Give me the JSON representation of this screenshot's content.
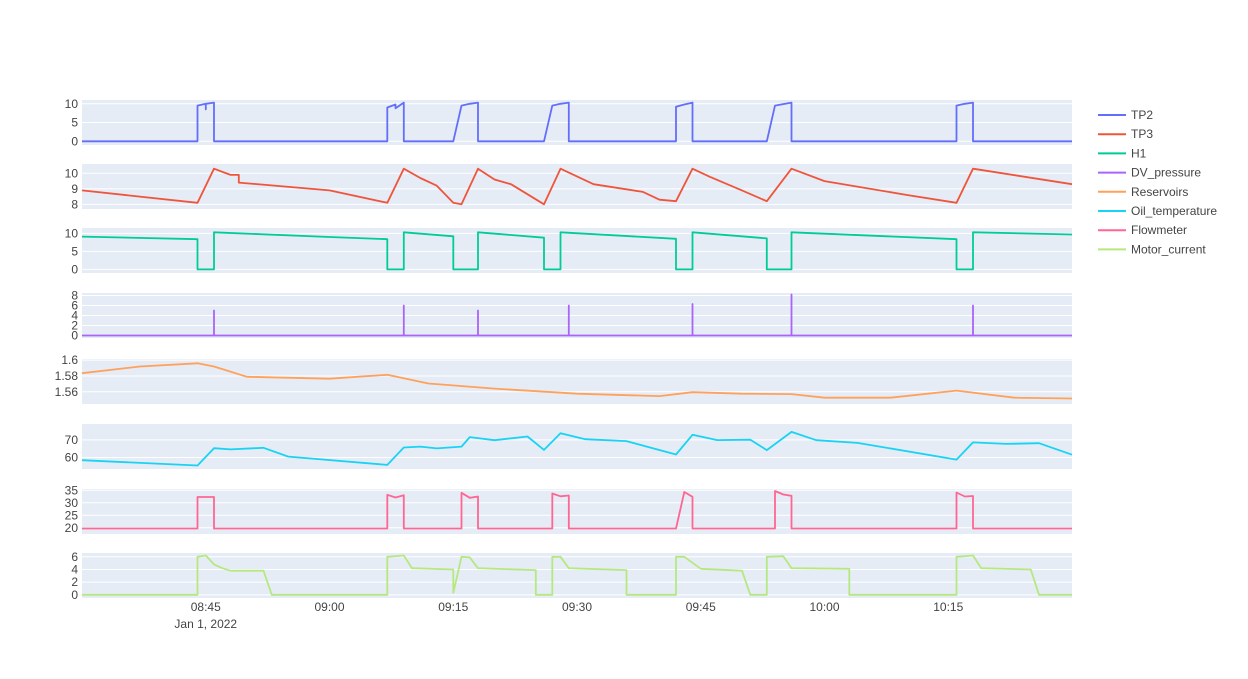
{
  "chart_data": {
    "type": "line",
    "title": "",
    "layout": "stacked-subplots",
    "legend_position": "right",
    "plot_background": "#e5ecf6",
    "x": {
      "type": "date",
      "range": [
        "2022-01-01 08:30",
        "2022-01-01 10:30"
      ],
      "tick_labels": [
        "08:45",
        "09:00",
        "09:15",
        "09:30",
        "09:45",
        "10:00",
        "10:15"
      ],
      "tick_values": [
        "08:45",
        "09:00",
        "09:15",
        "09:30",
        "09:45",
        "10:00",
        "10:15"
      ],
      "secondary_label": "Jan 1, 2022"
    },
    "series": [
      {
        "name": "TP2",
        "color": "#636efa",
        "ylim": [
          -1,
          11
        ],
        "yticks": [
          0,
          5,
          10
        ],
        "ytick_labels": [
          "0",
          "5",
          "10"
        ],
        "points": [
          [
            "08:30",
            0
          ],
          [
            "08:44",
            0
          ],
          [
            "08:44",
            9.5
          ],
          [
            "08:45",
            10
          ],
          [
            "08:45",
            8.5
          ],
          [
            "08:45",
            10
          ],
          [
            "08:46",
            10.3
          ],
          [
            "08:46",
            0
          ],
          [
            "09:07",
            0
          ],
          [
            "09:07",
            9
          ],
          [
            "09:08",
            9.8
          ],
          [
            "09:08",
            8.8
          ],
          [
            "09:09",
            10.3
          ],
          [
            "09:09",
            0
          ],
          [
            "09:15",
            0
          ],
          [
            "09:16",
            9.5
          ],
          [
            "09:17",
            10
          ],
          [
            "09:18",
            10.3
          ],
          [
            "09:18",
            0
          ],
          [
            "09:26",
            0
          ],
          [
            "09:27",
            9.5
          ],
          [
            "09:28",
            10
          ],
          [
            "09:29",
            10.3
          ],
          [
            "09:29",
            0
          ],
          [
            "09:42",
            0
          ],
          [
            "09:42",
            9.2
          ],
          [
            "09:43",
            9.8
          ],
          [
            "09:44",
            10.3
          ],
          [
            "09:44",
            0
          ],
          [
            "09:53",
            0
          ],
          [
            "09:54",
            9.5
          ],
          [
            "09:56",
            10.3
          ],
          [
            "09:56",
            0
          ],
          [
            "10:16",
            0
          ],
          [
            "10:16",
            9.5
          ],
          [
            "10:17",
            10
          ],
          [
            "10:18",
            10.3
          ],
          [
            "10:18",
            0
          ],
          [
            "10:30",
            0
          ]
        ]
      },
      {
        "name": "TP3",
        "color": "#ef553b",
        "ylim": [
          7.7,
          10.6
        ],
        "yticks": [
          8,
          9,
          10
        ],
        "ytick_labels": [
          "8",
          "9",
          "10"
        ],
        "points": [
          [
            "08:30",
            8.9
          ],
          [
            "08:44",
            8.1
          ],
          [
            "08:46",
            10.3
          ],
          [
            "08:48",
            9.9
          ],
          [
            "08:49",
            9.9
          ],
          [
            "08:49",
            9.4
          ],
          [
            "09:00",
            8.9
          ],
          [
            "09:07",
            8.1
          ],
          [
            "09:09",
            10.3
          ],
          [
            "09:11",
            9.7
          ],
          [
            "09:13",
            9.2
          ],
          [
            "09:15",
            8.1
          ],
          [
            "09:16",
            8.0
          ],
          [
            "09:18",
            10.3
          ],
          [
            "09:20",
            9.6
          ],
          [
            "09:22",
            9.3
          ],
          [
            "09:26",
            8.0
          ],
          [
            "09:28",
            10.3
          ],
          [
            "09:32",
            9.3
          ],
          [
            "09:38",
            8.8
          ],
          [
            "09:40",
            8.3
          ],
          [
            "09:42",
            8.2
          ],
          [
            "09:44",
            10.3
          ],
          [
            "09:46",
            9.8
          ],
          [
            "09:50",
            8.9
          ],
          [
            "09:53",
            8.2
          ],
          [
            "09:56",
            10.3
          ],
          [
            "10:00",
            9.5
          ],
          [
            "10:10",
            8.6
          ],
          [
            "10:16",
            8.1
          ],
          [
            "10:18",
            10.3
          ],
          [
            "10:30",
            9.3
          ]
        ]
      },
      {
        "name": "H1",
        "color": "#00cc96",
        "ylim": [
          -1,
          11.5
        ],
        "yticks": [
          0,
          5,
          10
        ],
        "ytick_labels": [
          "0",
          "5",
          "10"
        ],
        "points": [
          [
            "08:30",
            9.1
          ],
          [
            "08:44",
            8.4
          ],
          [
            "08:44",
            0
          ],
          [
            "08:46",
            0
          ],
          [
            "08:46",
            10.3
          ],
          [
            "09:00",
            9.0
          ],
          [
            "09:07",
            8.4
          ],
          [
            "09:07",
            0
          ],
          [
            "09:09",
            0
          ],
          [
            "09:09",
            10.3
          ],
          [
            "09:15",
            9.2
          ],
          [
            "09:15",
            0
          ],
          [
            "09:18",
            0
          ],
          [
            "09:18",
            10.3
          ],
          [
            "09:26",
            8.8
          ],
          [
            "09:26",
            0
          ],
          [
            "09:28",
            0
          ],
          [
            "09:28",
            10.3
          ],
          [
            "09:42",
            8.5
          ],
          [
            "09:42",
            0
          ],
          [
            "09:44",
            0
          ],
          [
            "09:44",
            10.3
          ],
          [
            "09:53",
            8.6
          ],
          [
            "09:53",
            0
          ],
          [
            "09:56",
            0
          ],
          [
            "09:56",
            10.3
          ],
          [
            "10:16",
            8.4
          ],
          [
            "10:16",
            0
          ],
          [
            "10:18",
            0
          ],
          [
            "10:18",
            10.3
          ],
          [
            "10:30",
            9.7
          ]
        ]
      },
      {
        "name": "DV_pressure",
        "color": "#ab63fa",
        "ylim": [
          -0.5,
          8.5
        ],
        "yticks": [
          0,
          2,
          4,
          6,
          8
        ],
        "ytick_labels": [
          "0",
          "2",
          "4",
          "6",
          "8"
        ],
        "points": [
          [
            "08:30",
            0
          ],
          [
            "08:46",
            0
          ],
          [
            "08:46",
            5
          ],
          [
            "08:46",
            0
          ],
          [
            "09:09",
            0
          ],
          [
            "09:09",
            6
          ],
          [
            "09:09",
            0
          ],
          [
            "09:18",
            0
          ],
          [
            "09:18",
            5
          ],
          [
            "09:18",
            0
          ],
          [
            "09:29",
            0
          ],
          [
            "09:29",
            6
          ],
          [
            "09:29",
            0
          ],
          [
            "09:44",
            0
          ],
          [
            "09:44",
            6.3
          ],
          [
            "09:44",
            0
          ],
          [
            "09:56",
            0
          ],
          [
            "09:56",
            8.2
          ],
          [
            "09:56",
            0
          ],
          [
            "10:18",
            0
          ],
          [
            "10:18",
            6
          ],
          [
            "10:18",
            0
          ],
          [
            "10:30",
            0
          ]
        ]
      },
      {
        "name": "Reservoirs",
        "color": "#ffa15a",
        "ylim": [
          1.5445,
          1.6015
        ],
        "yticks": [
          1.56,
          1.58,
          1.6
        ],
        "ytick_labels": [
          "1.56",
          "1.58",
          "1.6"
        ],
        "points": [
          [
            "08:30",
            1.5835
          ],
          [
            "08:37",
            1.592
          ],
          [
            "08:44",
            1.596
          ],
          [
            "08:46",
            1.592
          ],
          [
            "08:50",
            1.579
          ],
          [
            "09:00",
            1.5765
          ],
          [
            "09:07",
            1.5815
          ],
          [
            "09:12",
            1.5705
          ],
          [
            "09:20",
            1.564
          ],
          [
            "09:30",
            1.5575
          ],
          [
            "09:40",
            1.5545
          ],
          [
            "09:44",
            1.5595
          ],
          [
            "09:50",
            1.5575
          ],
          [
            "09:56",
            1.557
          ],
          [
            "10:00",
            1.5525
          ],
          [
            "10:08",
            1.5525
          ],
          [
            "10:16",
            1.5615
          ],
          [
            "10:23",
            1.5525
          ],
          [
            "10:30",
            1.5515
          ]
        ]
      },
      {
        "name": "Oil_temperature",
        "color": "#19d3f3",
        "ylim": [
          53.5,
          79
        ],
        "yticks": [
          60,
          70
        ],
        "ytick_labels": [
          "60",
          "70"
        ],
        "points": [
          [
            "08:30",
            58.5
          ],
          [
            "08:44",
            55.5
          ],
          [
            "08:46",
            65.3
          ],
          [
            "08:48",
            64.6
          ],
          [
            "08:52",
            65.5
          ],
          [
            "08:55",
            60.5
          ],
          [
            "09:07",
            55.8
          ],
          [
            "09:09",
            65.7
          ],
          [
            "09:11",
            66.2
          ],
          [
            "09:13",
            65.2
          ],
          [
            "09:16",
            66.2
          ],
          [
            "09:17",
            71.6
          ],
          [
            "09:20",
            69.8
          ],
          [
            "09:24",
            71.9
          ],
          [
            "09:26",
            64.3
          ],
          [
            "09:28",
            73.8
          ],
          [
            "09:31",
            70.4
          ],
          [
            "09:36",
            69.3
          ],
          [
            "09:42",
            61.7
          ],
          [
            "09:44",
            72.9
          ],
          [
            "09:47",
            69.9
          ],
          [
            "09:51",
            70.1
          ],
          [
            "09:53",
            64.2
          ],
          [
            "09:56",
            74.5
          ],
          [
            "09:59",
            69.8
          ],
          [
            "10:04",
            68.3
          ],
          [
            "10:16",
            58.8
          ],
          [
            "10:18",
            68.6
          ],
          [
            "10:22",
            67.7
          ],
          [
            "10:26",
            68.1
          ],
          [
            "10:30",
            61.6
          ]
        ]
      },
      {
        "name": "Flowmeter",
        "color": "#ff6692",
        "ylim": [
          17.5,
          35.5
        ],
        "yticks": [
          20,
          25,
          30,
          35
        ],
        "ytick_labels": [
          "20",
          "25",
          "30",
          "35"
        ],
        "points": [
          [
            "08:30",
            19.7
          ],
          [
            "08:44",
            19.7
          ],
          [
            "08:44",
            32.3
          ],
          [
            "08:46",
            32.3
          ],
          [
            "08:46",
            19.7
          ],
          [
            "09:07",
            19.7
          ],
          [
            "09:07",
            33.2
          ],
          [
            "09:08",
            32.1
          ],
          [
            "09:09",
            33
          ],
          [
            "09:09",
            19.7
          ],
          [
            "09:16",
            19.7
          ],
          [
            "09:16",
            34
          ],
          [
            "09:17",
            32
          ],
          [
            "09:18",
            32.5
          ],
          [
            "09:18",
            19.7
          ],
          [
            "09:27",
            19.7
          ],
          [
            "09:27",
            33.7
          ],
          [
            "09:28",
            32.6
          ],
          [
            "09:29",
            32.9
          ],
          [
            "09:29",
            19.7
          ],
          [
            "09:42",
            19.7
          ],
          [
            "09:43",
            34.3
          ],
          [
            "09:44",
            32.4
          ],
          [
            "09:44",
            19.7
          ],
          [
            "09:54",
            19.7
          ],
          [
            "09:54",
            34.7
          ],
          [
            "09:55",
            33.3
          ],
          [
            "09:56",
            32.8
          ],
          [
            "09:56",
            19.7
          ],
          [
            "10:16",
            19.7
          ],
          [
            "10:16",
            34.1
          ],
          [
            "10:17",
            32.5
          ],
          [
            "10:18",
            32.7
          ],
          [
            "10:18",
            19.7
          ],
          [
            "10:30",
            19.7
          ]
        ]
      },
      {
        "name": "Motor_current",
        "color": "#b6e880",
        "ylim": [
          -0.5,
          6.6
        ],
        "yticks": [
          0,
          2,
          4,
          6
        ],
        "ytick_labels": [
          "0",
          "2",
          "4",
          "6"
        ],
        "points": [
          [
            "08:30",
            0
          ],
          [
            "08:44",
            0
          ],
          [
            "08:44",
            6
          ],
          [
            "08:45",
            6.2
          ],
          [
            "08:46",
            4.8
          ],
          [
            "08:47",
            4.2
          ],
          [
            "08:48",
            3.8
          ],
          [
            "08:52",
            3.8
          ],
          [
            "08:53",
            0
          ],
          [
            "09:07",
            0
          ],
          [
            "09:07",
            6
          ],
          [
            "09:09",
            6.2
          ],
          [
            "09:10",
            4.2
          ],
          [
            "09:15",
            4
          ],
          [
            "09:15",
            0.3
          ],
          [
            "09:16",
            6
          ],
          [
            "09:17",
            5.9
          ],
          [
            "09:18",
            4.2
          ],
          [
            "09:25",
            3.9
          ],
          [
            "09:25",
            0
          ],
          [
            "09:27",
            0
          ],
          [
            "09:27",
            6
          ],
          [
            "09:28",
            6
          ],
          [
            "09:29",
            4.2
          ],
          [
            "09:36",
            3.9
          ],
          [
            "09:36",
            0
          ],
          [
            "09:42",
            0
          ],
          [
            "09:42",
            6
          ],
          [
            "09:43",
            6
          ],
          [
            "09:45",
            4.1
          ],
          [
            "09:50",
            3.8
          ],
          [
            "09:51",
            0
          ],
          [
            "09:53",
            0
          ],
          [
            "09:53",
            6
          ],
          [
            "09:55",
            6.1
          ],
          [
            "09:56",
            4.2
          ],
          [
            "10:03",
            4.1
          ],
          [
            "10:03",
            0
          ],
          [
            "10:16",
            0
          ],
          [
            "10:16",
            6
          ],
          [
            "10:18",
            6.2
          ],
          [
            "10:19",
            4.2
          ],
          [
            "10:25",
            4
          ],
          [
            "10:26",
            0
          ],
          [
            "10:30",
            0
          ]
        ]
      }
    ]
  }
}
